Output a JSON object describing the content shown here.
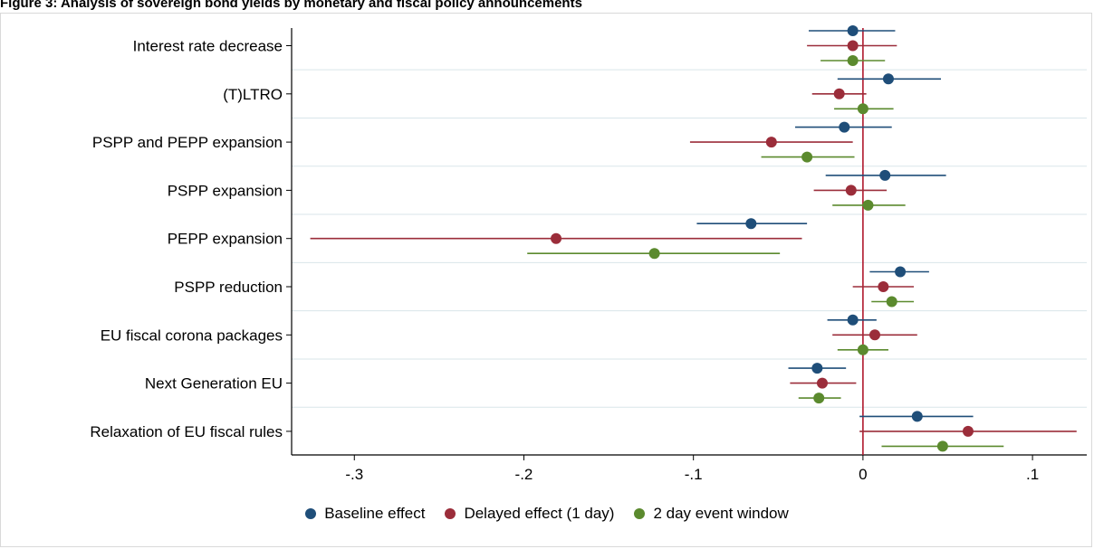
{
  "figure": {
    "title": "Figure 3: Analysis of sovereign bond yields by monetary and fiscal policy announcements"
  },
  "colors": {
    "baseline": "#1f4e79",
    "delayed": "#9b2d3a",
    "window2": "#5b8a2e",
    "zero_line": "#b0182d",
    "grid": "#d9e5ea"
  },
  "chart_data": {
    "type": "scatter",
    "subtype": "coefficient-plot-with-confidence-intervals",
    "categories": [
      "Interest rate decrease",
      "(T)LTRO",
      "PSPP and PEPP expansion",
      "PSPP expansion",
      "PEPP expansion",
      "PSPP reduction",
      "EU fiscal corona packages",
      "Next Generation EU",
      "Relaxation of EU fiscal rules"
    ],
    "series": [
      {
        "name": "Baseline effect",
        "color_key": "baseline",
        "estimates": [
          -0.006,
          0.015,
          -0.011,
          0.013,
          -0.066,
          0.022,
          -0.006,
          -0.027,
          0.032
        ],
        "ci_low": [
          -0.032,
          -0.015,
          -0.04,
          -0.022,
          -0.098,
          0.004,
          -0.021,
          -0.044,
          -0.002
        ],
        "ci_high": [
          0.019,
          0.046,
          0.017,
          0.049,
          -0.033,
          0.039,
          0.008,
          -0.01,
          0.065
        ]
      },
      {
        "name": "Delayed effect (1 day)",
        "color_key": "delayed",
        "estimates": [
          -0.006,
          -0.014,
          -0.054,
          -0.007,
          -0.181,
          0.012,
          0.007,
          -0.024,
          0.062
        ],
        "ci_low": [
          -0.033,
          -0.03,
          -0.102,
          -0.029,
          -0.326,
          -0.006,
          -0.018,
          -0.043,
          -0.002
        ],
        "ci_high": [
          0.02,
          0.002,
          -0.006,
          0.014,
          -0.036,
          0.03,
          0.032,
          -0.004,
          0.126
        ]
      },
      {
        "name": "2 day event window",
        "color_key": "window2",
        "estimates": [
          -0.006,
          0.0,
          -0.033,
          0.003,
          -0.123,
          0.017,
          0.0,
          -0.026,
          0.047
        ],
        "ci_low": [
          -0.025,
          -0.017,
          -0.06,
          -0.018,
          -0.198,
          0.005,
          -0.015,
          -0.038,
          0.011
        ],
        "ci_high": [
          0.013,
          0.018,
          -0.005,
          0.025,
          -0.049,
          0.03,
          0.015,
          -0.013,
          0.083
        ]
      }
    ],
    "x_ticks": [
      -0.3,
      -0.2,
      -0.1,
      0,
      0.1
    ],
    "x_tick_labels": [
      "-.3",
      "-.2",
      "-.1",
      "0",
      ".1"
    ],
    "xlim": [
      -0.337,
      0.132
    ],
    "reference_line_x": 0,
    "horizontal_grid": true,
    "legend_position": "bottom-center"
  }
}
